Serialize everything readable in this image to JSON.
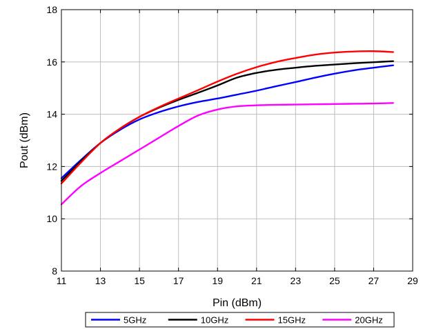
{
  "chart_data": {
    "type": "line",
    "title": "",
    "xlabel": "Pin (dBm)",
    "ylabel": "Pout (dBm)",
    "xlim": [
      11,
      29
    ],
    "ylim": [
      8,
      18
    ],
    "xticks": [
      11,
      13,
      15,
      17,
      19,
      21,
      23,
      25,
      27,
      29
    ],
    "yticks": [
      8,
      10,
      12,
      14,
      16,
      18
    ],
    "grid": true,
    "legend": "bottom",
    "series": [
      {
        "name": "5GHz",
        "color": "#0000ff",
        "x": [
          11,
          12,
          13,
          14,
          15,
          16,
          17,
          18,
          19,
          20,
          21,
          22,
          23,
          24,
          25,
          26,
          27,
          28
        ],
        "y": [
          11.55,
          12.25,
          12.9,
          13.4,
          13.8,
          14.08,
          14.3,
          14.47,
          14.6,
          14.75,
          14.9,
          15.07,
          15.23,
          15.4,
          15.55,
          15.68,
          15.78,
          15.87
        ]
      },
      {
        "name": "10GHz",
        "color": "#000000",
        "x": [
          11,
          12,
          13,
          14,
          15,
          16,
          17,
          18,
          19,
          20,
          21,
          22,
          23,
          24,
          25,
          26,
          27,
          28
        ],
        "y": [
          11.45,
          12.2,
          12.9,
          13.45,
          13.9,
          14.25,
          14.55,
          14.82,
          15.1,
          15.4,
          15.58,
          15.7,
          15.78,
          15.85,
          15.9,
          15.95,
          15.99,
          16.03
        ]
      },
      {
        "name": "15GHz",
        "color": "#ff0000",
        "x": [
          11,
          12,
          13,
          14,
          15,
          16,
          17,
          18,
          19,
          20,
          21,
          22,
          23,
          24,
          25,
          26,
          27,
          28
        ],
        "y": [
          11.35,
          12.15,
          12.9,
          13.45,
          13.9,
          14.27,
          14.6,
          14.92,
          15.25,
          15.55,
          15.8,
          16.0,
          16.15,
          16.28,
          16.36,
          16.4,
          16.41,
          16.38
        ]
      },
      {
        "name": "20GHz",
        "color": "#ff00ff",
        "x": [
          11,
          12,
          13,
          14,
          15,
          16,
          17,
          18,
          19,
          20,
          21,
          22,
          23,
          24,
          25,
          26,
          27,
          28
        ],
        "y": [
          10.55,
          11.25,
          11.75,
          12.2,
          12.65,
          13.1,
          13.55,
          13.95,
          14.18,
          14.3,
          14.34,
          14.36,
          14.37,
          14.38,
          14.39,
          14.4,
          14.41,
          14.43
        ]
      }
    ]
  }
}
